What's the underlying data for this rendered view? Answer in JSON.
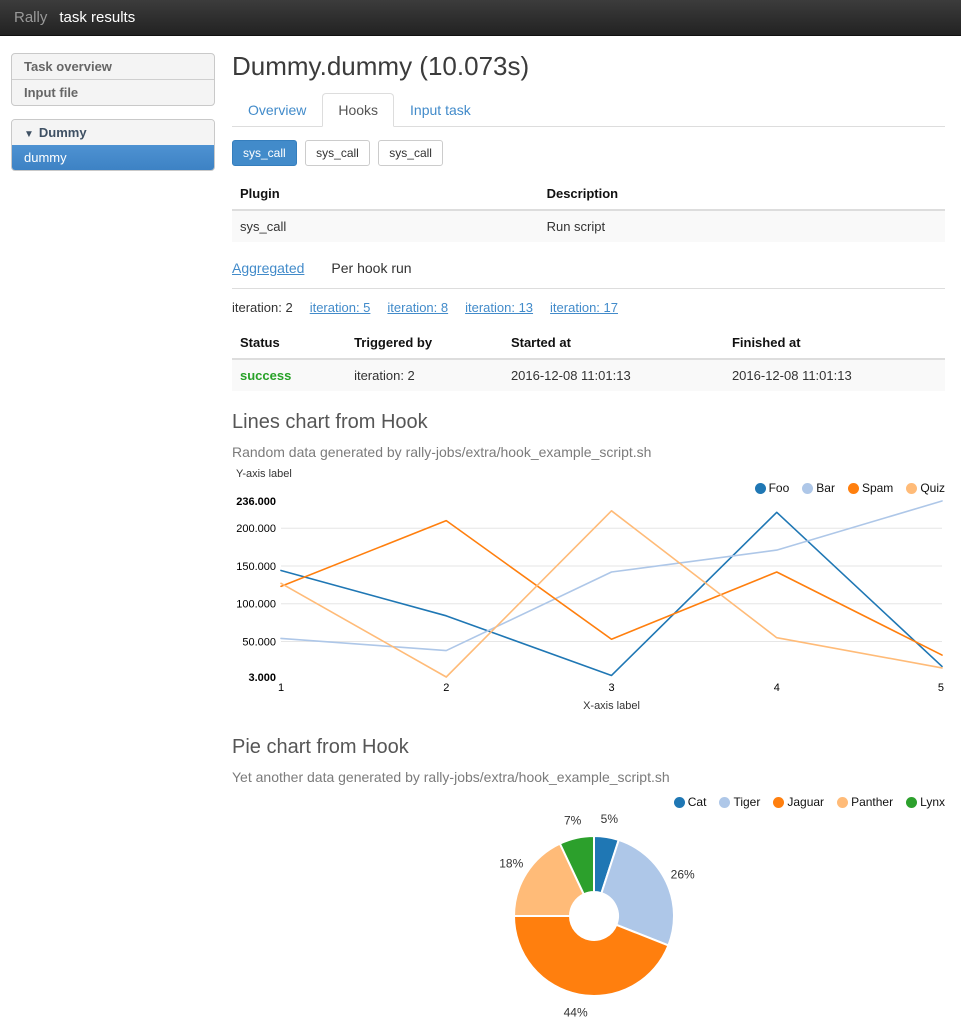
{
  "colors": {
    "accent": "#428bca",
    "success": "#28a228"
  },
  "navbar": {
    "brand": "Rally",
    "title": "task results"
  },
  "sidebar": {
    "items": [
      {
        "label": "Task overview"
      },
      {
        "label": "Input file"
      }
    ],
    "scenario_group": {
      "caret": "▼",
      "header": "Dummy",
      "items": [
        {
          "label": "dummy",
          "active": true
        }
      ]
    }
  },
  "main": {
    "title": "Dummy.dummy (10.073s)",
    "tabs": [
      {
        "label": "Overview",
        "active": false
      },
      {
        "label": "Hooks",
        "active": true
      },
      {
        "label": "Input task",
        "active": false
      }
    ],
    "hook_buttons": [
      {
        "label": "sys_call",
        "active": true
      },
      {
        "label": "sys_call",
        "active": false
      },
      {
        "label": "sys_call",
        "active": false
      }
    ],
    "plugin_table": {
      "headers": [
        "Plugin",
        "Description"
      ],
      "rows": [
        [
          "sys_call",
          "Run script"
        ]
      ]
    },
    "view_toggle": {
      "link": "Aggregated",
      "current": "Per hook run"
    },
    "iterations": {
      "current": "iteration: 2",
      "links": [
        "iteration: 5",
        "iteration: 8",
        "iteration: 13",
        "iteration: 17"
      ]
    },
    "runs_table": {
      "headers": [
        "Status",
        "Triggered by",
        "Started at",
        "Finished at"
      ],
      "rows": [
        [
          "success",
          "iteration: 2",
          "2016-12-08 11:01:13",
          "2016-12-08 11:01:13"
        ]
      ]
    }
  },
  "chart_data": [
    {
      "type": "line",
      "title": "Lines chart from Hook",
      "subtitle": "Random data generated by rally-jobs/extra/hook_example_script.sh",
      "xlabel": "X-axis label",
      "ylabel": "Y-axis label",
      "x": [
        1,
        2,
        3,
        4,
        5
      ],
      "xticklabels": [
        "1",
        "2",
        "3",
        "4",
        "5"
      ],
      "series": [
        {
          "name": "Foo",
          "color": "#1f77b4",
          "values": [
            144,
            84,
            5,
            221,
            17
          ]
        },
        {
          "name": "Bar",
          "color": "#aec7e8",
          "values": [
            54,
            38,
            142,
            171,
            236
          ]
        },
        {
          "name": "Spam",
          "color": "#ff7f0e",
          "values": [
            123,
            210,
            53,
            142,
            32
          ]
        },
        {
          "name": "Quiz",
          "color": "#ffbb78",
          "values": [
            127,
            3,
            223,
            55,
            15
          ]
        }
      ],
      "ylim": [
        3,
        236
      ],
      "yticks": [
        {
          "value": 3,
          "label": "3.000",
          "bold": true
        },
        {
          "value": 50,
          "label": "50.000",
          "bold": false
        },
        {
          "value": 100,
          "label": "100.000",
          "bold": false
        },
        {
          "value": 150,
          "label": "150.000",
          "bold": false
        },
        {
          "value": 200,
          "label": "200.000",
          "bold": false
        },
        {
          "value": 236,
          "label": "236.000",
          "bold": true
        }
      ],
      "grid_values": [
        50,
        100,
        150,
        200
      ],
      "legend_position": "top-right"
    },
    {
      "type": "pie",
      "title": "Pie chart from Hook",
      "subtitle": "Yet another data generated by rally-jobs/extra/hook_example_script.sh",
      "donut": true,
      "slices": [
        {
          "name": "Cat",
          "percent": 5,
          "label": "5%",
          "color": "#1f77b4"
        },
        {
          "name": "Tiger",
          "percent": 26,
          "label": "26%",
          "color": "#aec7e8"
        },
        {
          "name": "Jaguar",
          "percent": 44,
          "label": "44%",
          "color": "#ff7f0e"
        },
        {
          "name": "Panther",
          "percent": 18,
          "label": "18%",
          "color": "#ffbb78"
        },
        {
          "name": "Lynx",
          "percent": 7,
          "label": "7%",
          "color": "#2ca02c"
        }
      ],
      "legend_position": "top-right"
    }
  ]
}
